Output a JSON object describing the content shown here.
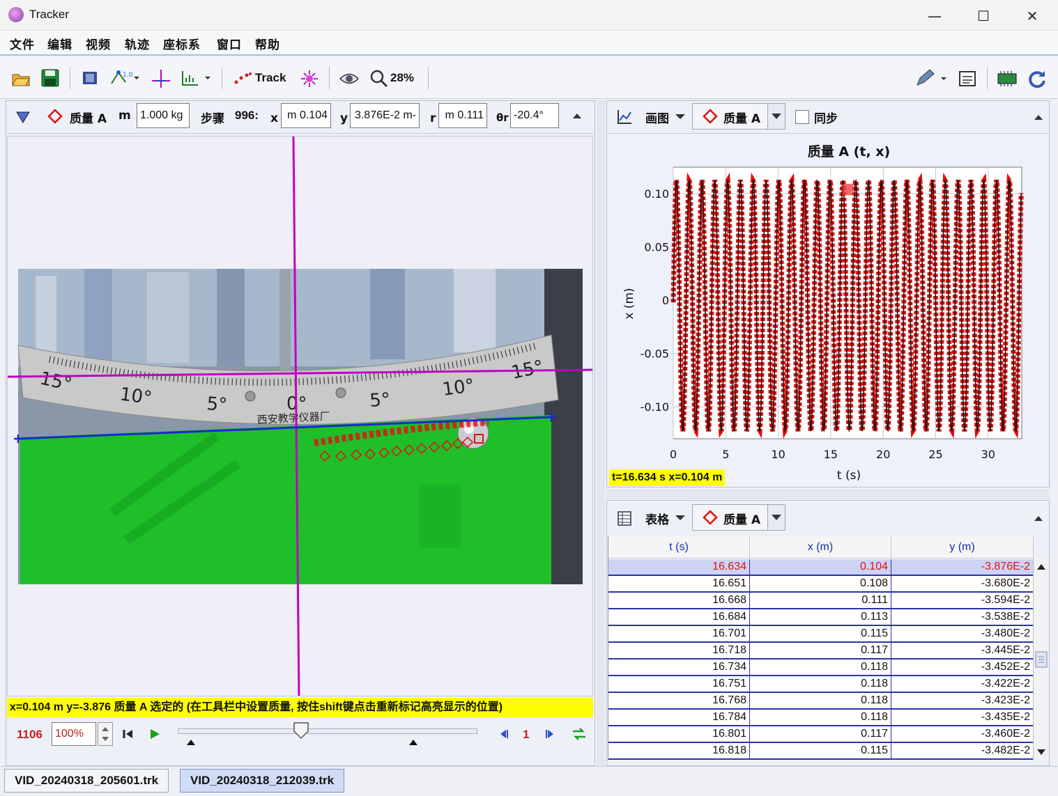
{
  "window": {
    "title": "Tracker"
  },
  "menu": [
    "文件",
    "编辑",
    "视频",
    "轨迹",
    "座标系",
    "窗口",
    "帮助"
  ],
  "toolbar": {
    "track_label": "Track",
    "zoom": "28%"
  },
  "track_bar": {
    "track_name": "质量 A",
    "mass_label": "m",
    "mass_value": "1.000 kg",
    "step_label": "步骤",
    "step_value": "996:",
    "x_label": "x",
    "x_value": "0.104 m",
    "y_label": "y",
    "y_value": "-3.876E-2 m",
    "r_label": "r",
    "r_value": "0.111 m",
    "theta_label": "θr",
    "theta_value": "-20.4°"
  },
  "video": {
    "ruler_marks": [
      "15°",
      "10°",
      "5°",
      "0°",
      "5°",
      "10°",
      "15°"
    ],
    "ruler_brand": "西安教学仪器厂",
    "status": "x=0.104 m  y=-3.876 质量 A 选定的 (在工具栏中设置质量, 按住shift键点击重新标记高亮显示的位置)"
  },
  "player": {
    "frame": "1106",
    "rate": "100%",
    "step_size": "1"
  },
  "plot_panel": {
    "view_label": "画图",
    "track_name": "质量 A",
    "sync_label": "同步",
    "sync_checked": false,
    "readout": "t=16.634 s  x=0.104 m"
  },
  "chart_data": {
    "type": "line",
    "title": "质量 A (t, x)",
    "xlabel": "t (s)",
    "ylabel": "x (m)",
    "xlim": [
      0,
      33.2
    ],
    "ylim": [
      -0.13,
      0.125
    ],
    "xticks": [
      0,
      5,
      10,
      15,
      20,
      25,
      30
    ],
    "xtick_labels": [
      "0",
      "5",
      "10",
      "15",
      "20",
      "25",
      "30"
    ],
    "yticks": [
      0.1,
      0.05,
      0,
      -0.05,
      -0.1
    ],
    "ytick_labels": [
      "0.10",
      "0.05",
      "0",
      "-0.05",
      "-0.10"
    ],
    "series_color": "#e01010",
    "line_color": "#111111",
    "period_s": 1.22,
    "amplitude_m": 0.118,
    "t_range": [
      0,
      33.2
    ],
    "highlight_point": {
      "t": 16.634,
      "x": 0.104
    }
  },
  "table_panel": {
    "view_label": "表格",
    "track_name": "质量 A",
    "columns": [
      "t (s)",
      "x (m)",
      "y (m)"
    ],
    "rows": [
      [
        "16.634",
        "0.104",
        "-3.876E-2"
      ],
      [
        "16.651",
        "0.108",
        "-3.680E-2"
      ],
      [
        "16.668",
        "0.111",
        "-3.594E-2"
      ],
      [
        "16.684",
        "0.113",
        "-3.538E-2"
      ],
      [
        "16.701",
        "0.115",
        "-3.480E-2"
      ],
      [
        "16.718",
        "0.117",
        "-3.445E-2"
      ],
      [
        "16.734",
        "0.118",
        "-3.452E-2"
      ],
      [
        "16.751",
        "0.118",
        "-3.422E-2"
      ],
      [
        "16.768",
        "0.118",
        "-3.423E-2"
      ],
      [
        "16.784",
        "0.118",
        "-3.435E-2"
      ],
      [
        "16.801",
        "0.117",
        "-3.460E-2"
      ],
      [
        "16.818",
        "0.115",
        "-3.482E-2"
      ]
    ]
  },
  "tabs": [
    "VID_20240318_205601.trk",
    "VID_20240318_212039.trk"
  ],
  "colors": {
    "accent": "#1530a8",
    "highlight": "#ffff00",
    "track": "#e01010",
    "axis": "#c000c0"
  }
}
